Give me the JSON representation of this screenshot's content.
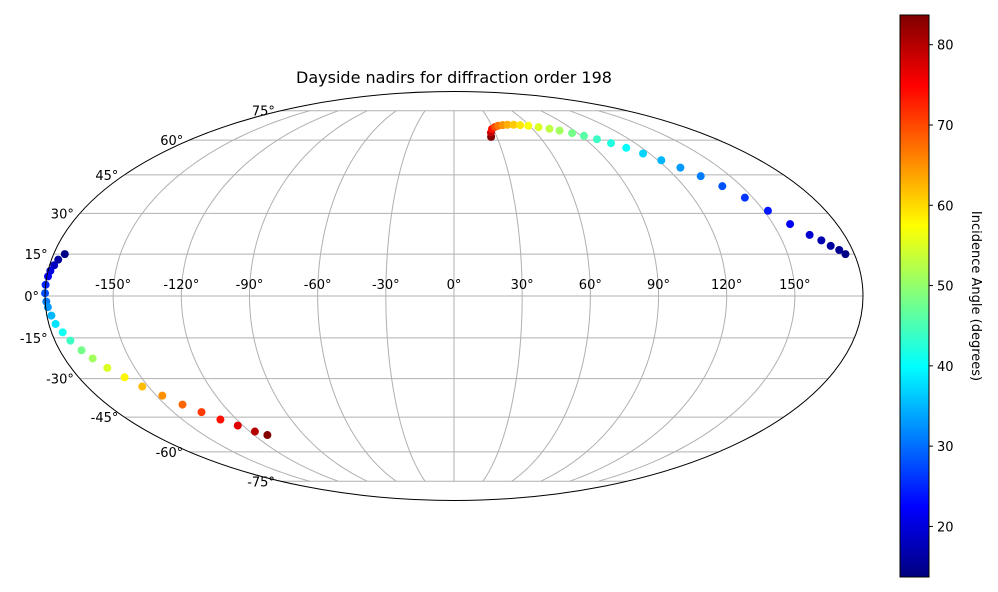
{
  "chart_data": {
    "type": "scatter",
    "projection": "mollweide",
    "title": "Dayside nadirs for diffraction order 198",
    "grid": true,
    "lon_ticks": [
      -150,
      -120,
      -90,
      -60,
      -30,
      0,
      30,
      60,
      90,
      120,
      150
    ],
    "lat_ticks": [
      -75,
      -60,
      -45,
      -30,
      -15,
      0,
      15,
      30,
      45,
      60,
      75
    ],
    "lon_tick_labels": [
      "-150°",
      "-120°",
      "-90°",
      "-60°",
      "-30°",
      "0°",
      "30°",
      "60°",
      "90°",
      "120°",
      "150°"
    ],
    "lat_tick_labels": [
      "-75°",
      "-60°",
      "-45°",
      "-30°",
      "-15°",
      "0°",
      "15°",
      "30°",
      "45°",
      "60°",
      "75°"
    ],
    "colorbar": {
      "label": "Incidence Angle (degrees)",
      "colormap": "jet",
      "range": [
        13.7,
        83.7
      ],
      "ticks": [
        20,
        30,
        40,
        50,
        60,
        70,
        80
      ],
      "tick_labels": [
        "20",
        "30",
        "40",
        "50",
        "60",
        "70",
        "80"
      ]
    },
    "series": [
      {
        "columns": [
          "longitude",
          "latitude",
          "incidence_angle"
        ],
        "points": [
          [
            26,
            61.5,
            83.5
          ],
          [
            27,
            63.5,
            79
          ],
          [
            29,
            65.3,
            74
          ],
          [
            32,
            66.3,
            70
          ],
          [
            35,
            66.9,
            67
          ],
          [
            39,
            67.2,
            65
          ],
          [
            43,
            67.4,
            63
          ],
          [
            48,
            67.4,
            61
          ],
          [
            53,
            67.2,
            59
          ],
          [
            59,
            66.9,
            57
          ],
          [
            66,
            66.2,
            55
          ],
          [
            73,
            65.4,
            53
          ],
          [
            79,
            64.5,
            51
          ],
          [
            86,
            63.3,
            48
          ],
          [
            92,
            62.0,
            46
          ],
          [
            98,
            60.4,
            44
          ],
          [
            104,
            58.6,
            42
          ],
          [
            110,
            56.5,
            40
          ],
          [
            116,
            54.0,
            37
          ],
          [
            122,
            51.1,
            35
          ],
          [
            128,
            48.0,
            33
          ],
          [
            134,
            44.5,
            31
          ],
          [
            140,
            40.5,
            28
          ],
          [
            146,
            36.0,
            26
          ],
          [
            152,
            31.0,
            24
          ],
          [
            158,
            26.0,
            22
          ],
          [
            164,
            22.0,
            19
          ],
          [
            168,
            20.0,
            17
          ],
          [
            171,
            18.0,
            16
          ],
          [
            174,
            16.5,
            15
          ],
          [
            176,
            15.0,
            14
          ],
          [
            -175,
            15.0,
            14
          ],
          [
            -177,
            13.0,
            16
          ],
          [
            -178,
            11.0,
            18
          ],
          [
            -179,
            9.0,
            20
          ],
          [
            -179.5,
            7.0,
            22
          ],
          [
            -180,
            4.0,
            25
          ],
          [
            -180,
            1.0,
            28
          ],
          [
            -179.5,
            -2.0,
            31
          ],
          [
            -179,
            -4.0,
            33
          ],
          [
            -178,
            -7.0,
            35
          ],
          [
            -177,
            -10.0,
            38
          ],
          [
            -175,
            -13.0,
            41
          ],
          [
            -173,
            -16.0,
            44
          ],
          [
            -170,
            -19.5,
            48
          ],
          [
            -167,
            -22.5,
            51
          ],
          [
            -163,
            -26.0,
            55
          ],
          [
            -158,
            -29.5,
            58
          ],
          [
            -153,
            -33.0,
            62
          ],
          [
            -147,
            -36.5,
            65
          ],
          [
            -141,
            -40.0,
            68
          ],
          [
            -135,
            -43.0,
            71
          ],
          [
            -129,
            -46.0,
            74
          ],
          [
            -123,
            -48.5,
            77
          ],
          [
            -117,
            -51.0,
            80
          ],
          [
            -112,
            -52.5,
            83.5
          ]
        ]
      }
    ]
  }
}
